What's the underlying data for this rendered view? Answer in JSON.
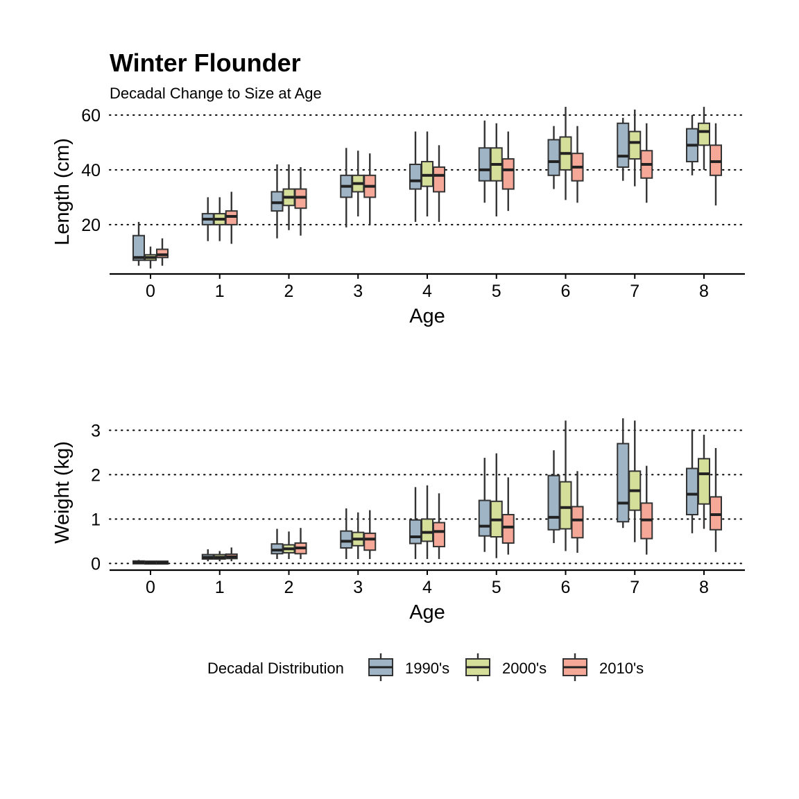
{
  "title": "Winter Flounder",
  "subtitle": "Decadal Change to Size at Age",
  "legend": {
    "title": "Decadal Distribution",
    "entries": [
      {
        "label": "1990's",
        "color": "#9fb5c6"
      },
      {
        "label": "2000's",
        "color": "#d6df99"
      },
      {
        "label": "2010's",
        "color": "#f5a898"
      }
    ],
    "placement": "bottom"
  },
  "chart_data": [
    {
      "type": "boxplot",
      "xlabel": "Age",
      "ylabel": "Length (cm)",
      "ylim": [
        2,
        62
      ],
      "yticks": [
        20,
        40,
        60
      ],
      "grid": "dotted horizontal at ticks",
      "categories": [
        "0",
        "1",
        "2",
        "3",
        "4",
        "5",
        "6",
        "7",
        "8"
      ],
      "series": [
        {
          "name": "1990's",
          "boxes": [
            {
              "min": 5,
              "q1": 7,
              "median": 8,
              "q3": 16,
              "max": 21
            },
            {
              "min": 14,
              "q1": 20,
              "median": 22,
              "q3": 24,
              "max": 30
            },
            {
              "min": 15,
              "q1": 25,
              "median": 28,
              "q3": 32,
              "max": 42
            },
            {
              "min": 19,
              "q1": 30,
              "median": 34,
              "q3": 38,
              "max": 48
            },
            {
              "min": 21,
              "q1": 33,
              "median": 36,
              "q3": 42,
              "max": 54
            },
            {
              "min": 28,
              "q1": 36,
              "median": 40,
              "q3": 48,
              "max": 58
            },
            {
              "min": 33,
              "q1": 38,
              "median": 43,
              "q3": 51,
              "max": 56
            },
            {
              "min": 36,
              "q1": 41,
              "median": 45,
              "q3": 57,
              "max": 59
            },
            {
              "min": 38,
              "q1": 43,
              "median": 49,
              "q3": 55,
              "max": 60
            }
          ]
        },
        {
          "name": "2000's",
          "boxes": [
            {
              "min": 4,
              "q1": 7,
              "median": 8,
              "q3": 9,
              "max": 12
            },
            {
              "min": 14,
              "q1": 20,
              "median": 22,
              "q3": 24,
              "max": 30
            },
            {
              "min": 18,
              "q1": 27,
              "median": 30,
              "q3": 33,
              "max": 42
            },
            {
              "min": 23,
              "q1": 32,
              "median": 35,
              "q3": 38,
              "max": 47
            },
            {
              "min": 23,
              "q1": 34,
              "median": 38,
              "q3": 43,
              "max": 54
            },
            {
              "min": 23,
              "q1": 36,
              "median": 42,
              "q3": 48,
              "max": 57
            },
            {
              "min": 29,
              "q1": 40,
              "median": 46,
              "q3": 52,
              "max": 63
            },
            {
              "min": 34,
              "q1": 44,
              "median": 50,
              "q3": 54,
              "max": 62
            },
            {
              "min": 40,
              "q1": 49,
              "median": 54,
              "q3": 57,
              "max": 63
            }
          ]
        },
        {
          "name": "2010's",
          "boxes": [
            {
              "min": 5,
              "q1": 8,
              "median": 9,
              "q3": 11,
              "max": 15
            },
            {
              "min": 13,
              "q1": 20,
              "median": 23,
              "q3": 25,
              "max": 32
            },
            {
              "min": 16,
              "q1": 26,
              "median": 30,
              "q3": 33,
              "max": 41
            },
            {
              "min": 20,
              "q1": 30,
              "median": 34,
              "q3": 38,
              "max": 46
            },
            {
              "min": 21,
              "q1": 32,
              "median": 38,
              "q3": 41,
              "max": 49
            },
            {
              "min": 25,
              "q1": 33,
              "median": 40,
              "q3": 44,
              "max": 54
            },
            {
              "min": 28,
              "q1": 36,
              "median": 41,
              "q3": 46,
              "max": 56
            },
            {
              "min": 28,
              "q1": 37,
              "median": 42,
              "q3": 47,
              "max": 57
            },
            {
              "min": 27,
              "q1": 38,
              "median": 43,
              "q3": 49,
              "max": 57
            }
          ]
        }
      ]
    },
    {
      "type": "boxplot",
      "xlabel": "Age",
      "ylabel": "Weight (kg)",
      "ylim": [
        -0.15,
        3.35
      ],
      "yticks": [
        0,
        1,
        2,
        3
      ],
      "grid": "dotted horizontal at ticks",
      "categories": [
        "0",
        "1",
        "2",
        "3",
        "4",
        "5",
        "6",
        "7",
        "8"
      ],
      "series": [
        {
          "name": "1990's",
          "boxes": [
            {
              "min": 0.0,
              "q1": 0.01,
              "median": 0.02,
              "q3": 0.04,
              "max": 0.08
            },
            {
              "min": 0.05,
              "q1": 0.1,
              "median": 0.14,
              "q3": 0.2,
              "max": 0.32
            },
            {
              "min": 0.1,
              "q1": 0.22,
              "median": 0.3,
              "q3": 0.44,
              "max": 0.78
            },
            {
              "min": 0.1,
              "q1": 0.35,
              "median": 0.5,
              "q3": 0.73,
              "max": 1.24
            },
            {
              "min": 0.1,
              "q1": 0.45,
              "median": 0.6,
              "q3": 0.98,
              "max": 1.72
            },
            {
              "min": 0.26,
              "q1": 0.62,
              "median": 0.84,
              "q3": 1.42,
              "max": 2.38
            },
            {
              "min": 0.46,
              "q1": 0.76,
              "median": 1.04,
              "q3": 1.98,
              "max": 2.55
            },
            {
              "min": 0.8,
              "q1": 0.94,
              "median": 1.36,
              "q3": 2.7,
              "max": 3.27
            },
            {
              "min": 0.68,
              "q1": 1.1,
              "median": 1.56,
              "q3": 2.14,
              "max": 3.02
            }
          ]
        },
        {
          "name": "2000's",
          "boxes": [
            {
              "min": 0.0,
              "q1": 0.01,
              "median": 0.02,
              "q3": 0.03,
              "max": 0.05
            },
            {
              "min": 0.05,
              "q1": 0.1,
              "median": 0.14,
              "q3": 0.2,
              "max": 0.28
            },
            {
              "min": 0.1,
              "q1": 0.24,
              "median": 0.33,
              "q3": 0.42,
              "max": 0.72
            },
            {
              "min": 0.1,
              "q1": 0.4,
              "median": 0.55,
              "q3": 0.7,
              "max": 1.15
            },
            {
              "min": 0.1,
              "q1": 0.5,
              "median": 0.7,
              "q3": 1.0,
              "max": 1.76
            },
            {
              "min": 0.12,
              "q1": 0.6,
              "median": 0.98,
              "q3": 1.4,
              "max": 2.48
            },
            {
              "min": 0.28,
              "q1": 0.78,
              "median": 1.26,
              "q3": 1.84,
              "max": 3.22
            },
            {
              "min": 0.48,
              "q1": 1.2,
              "median": 1.64,
              "q3": 2.08,
              "max": 3.22
            },
            {
              "min": 0.78,
              "q1": 1.34,
              "median": 2.02,
              "q3": 2.36,
              "max": 2.9
            }
          ]
        },
        {
          "name": "2010's",
          "boxes": [
            {
              "min": 0.0,
              "q1": 0.01,
              "median": 0.02,
              "q3": 0.03,
              "max": 0.05
            },
            {
              "min": 0.05,
              "q1": 0.11,
              "median": 0.15,
              "q3": 0.21,
              "max": 0.36
            },
            {
              "min": 0.1,
              "q1": 0.22,
              "median": 0.35,
              "q3": 0.46,
              "max": 0.8
            },
            {
              "min": 0.1,
              "q1": 0.3,
              "median": 0.55,
              "q3": 0.68,
              "max": 1.2
            },
            {
              "min": 0.1,
              "q1": 0.38,
              "median": 0.72,
              "q3": 0.92,
              "max": 1.58
            },
            {
              "min": 0.2,
              "q1": 0.46,
              "median": 0.82,
              "q3": 1.1,
              "max": 1.94
            },
            {
              "min": 0.24,
              "q1": 0.58,
              "median": 0.98,
              "q3": 1.28,
              "max": 2.08
            },
            {
              "min": 0.2,
              "q1": 0.56,
              "median": 0.98,
              "q3": 1.36,
              "max": 2.2
            },
            {
              "min": 0.26,
              "q1": 0.76,
              "median": 1.1,
              "q3": 1.5,
              "max": 2.6
            }
          ]
        }
      ]
    }
  ]
}
